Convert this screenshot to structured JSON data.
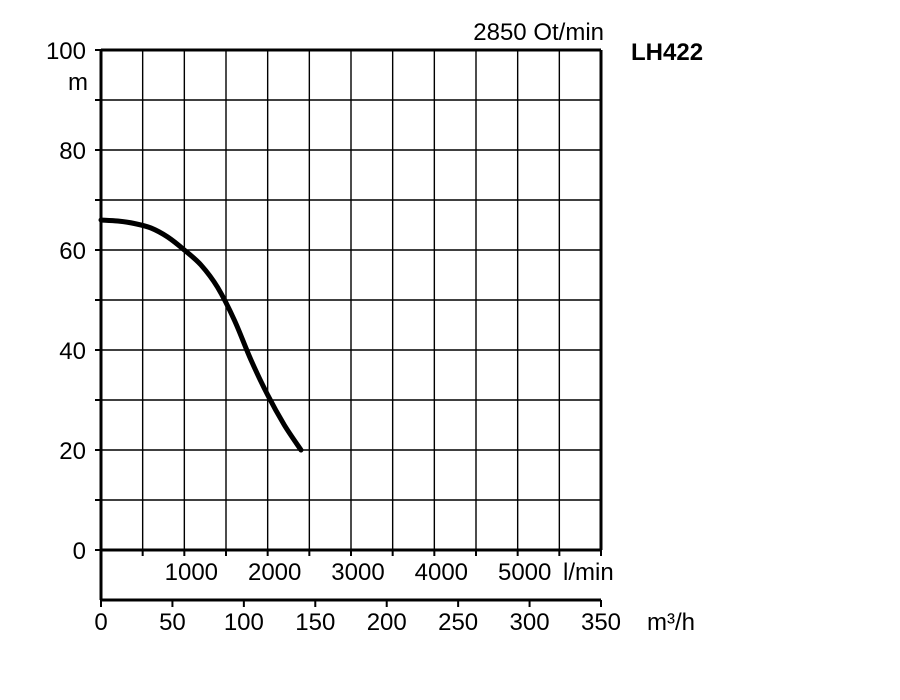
{
  "chart_data": {
    "type": "line",
    "title": "2850 Ot/min",
    "model": "LH422",
    "y_unit": "m",
    "x_unit_lmin": "l/min",
    "x_unit_m3h": "m³/h",
    "ylim": [
      0,
      100
    ],
    "xlim_lmin": [
      0,
      6000
    ],
    "y_ticks": [
      "0",
      "20",
      "40",
      "60",
      "80",
      "100"
    ],
    "x_ticks_lmin": [
      "1000",
      "2000",
      "3000",
      "4000",
      "5000"
    ],
    "x_ticks_m3h": [
      "0",
      "50",
      "100",
      "150",
      "200",
      "250",
      "300",
      "350"
    ],
    "grid": true,
    "series": [
      {
        "x": [
          0,
          200,
          400,
          600,
          800,
          1000,
          1200,
          1400,
          1600,
          1800,
          2000,
          2200,
          2400
        ],
        "y": [
          66,
          65.8,
          65.3,
          64.4,
          62.6,
          60,
          57,
          52.5,
          46,
          38,
          31,
          25,
          20
        ]
      }
    ]
  }
}
